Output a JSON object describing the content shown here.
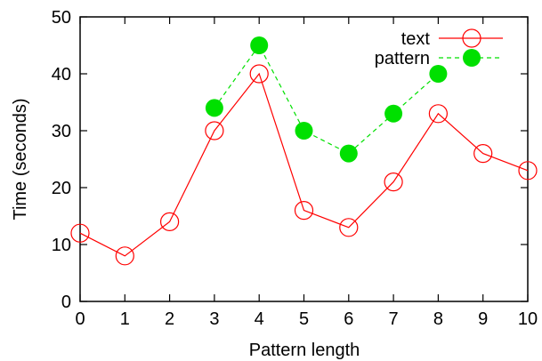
{
  "chart_data": {
    "type": "line",
    "xlabel": "Pattern length",
    "ylabel": "Time (seconds)",
    "xlim": [
      0,
      10
    ],
    "ylim": [
      0,
      50
    ],
    "xticks": [
      0,
      1,
      2,
      3,
      4,
      5,
      6,
      7,
      8,
      9,
      10
    ],
    "yticks": [
      0,
      10,
      20,
      30,
      40,
      50
    ],
    "grid": false,
    "legend_position": "top-right",
    "series": [
      {
        "name": "text",
        "color": "#ff0000",
        "line_style": "solid",
        "marker": "open-circle",
        "x": [
          0,
          1,
          2,
          3,
          4,
          5,
          6,
          7,
          8,
          9,
          10
        ],
        "y": [
          12,
          8,
          14,
          30,
          40,
          16,
          13,
          21,
          33,
          26,
          23
        ]
      },
      {
        "name": "pattern",
        "color": "#00e000",
        "line_style": "dashed",
        "marker": "filled-circle",
        "x": [
          3,
          4,
          5,
          6,
          7,
          8
        ],
        "y": [
          34,
          45,
          30,
          26,
          33,
          40
        ]
      }
    ]
  }
}
